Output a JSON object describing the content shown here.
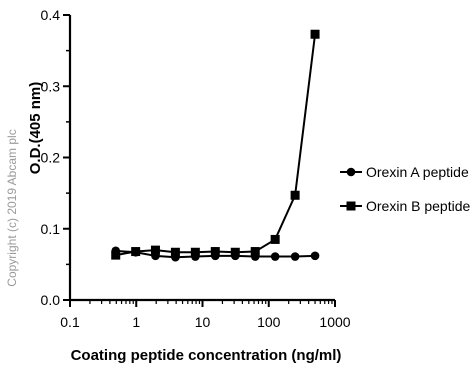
{
  "chart_data": {
    "type": "line",
    "xscale": "log",
    "xlim": [
      0.1,
      1000
    ],
    "ylim": [
      0.0,
      0.4
    ],
    "xticks": [
      0.1,
      1,
      10,
      100,
      1000
    ],
    "xtick_labels": [
      "0.1",
      "1",
      "10",
      "100",
      "1000"
    ],
    "yticks": [
      0.0,
      0.1,
      0.2,
      0.3,
      0.4
    ],
    "ytick_labels": [
      "0.0",
      "0.1",
      "0.2",
      "0.3",
      "0.4"
    ],
    "xlabel": "Coating peptide concentration (ng/ml)",
    "ylabel": "O.D.(405 nm)",
    "legend_position": "right",
    "grid": false,
    "series": [
      {
        "name": "Orexin A peptide",
        "marker": "circle",
        "color": "#000000",
        "x": [
          0.49,
          0.98,
          1.95,
          3.9,
          7.8,
          15.6,
          31.25,
          62.5,
          125,
          250,
          500
        ],
        "y": [
          0.069,
          0.067,
          0.062,
          0.06,
          0.061,
          0.062,
          0.062,
          0.061,
          0.061,
          0.061,
          0.062
        ]
      },
      {
        "name": "Orexin B peptide",
        "marker": "square",
        "color": "#000000",
        "x": [
          0.49,
          0.98,
          1.95,
          3.9,
          7.8,
          15.6,
          31.25,
          62.5,
          125,
          250,
          500
        ],
        "y": [
          0.063,
          0.068,
          0.07,
          0.067,
          0.067,
          0.068,
          0.067,
          0.068,
          0.085,
          0.147,
          0.373
        ]
      }
    ]
  },
  "watermark": "Copyright (c) 2019 Abcam plc"
}
